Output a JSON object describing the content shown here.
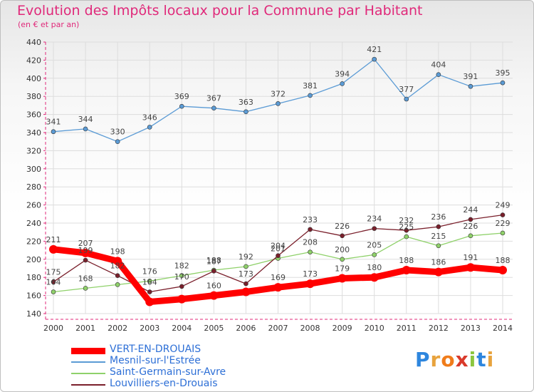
{
  "chart_data": {
    "type": "line",
    "title": "Evolution des Impôts locaux pour la Commune par Habitant",
    "subtitle": "(en € et par an)",
    "x": [
      "2000",
      "2001",
      "2002",
      "2003",
      "2004",
      "2005",
      "2006",
      "2007",
      "2008",
      "2009",
      "2010",
      "2011",
      "2012",
      "2013",
      "2014"
    ],
    "ylim": [
      140,
      440
    ],
    "yticks": [
      140,
      160,
      180,
      200,
      220,
      240,
      260,
      280,
      300,
      320,
      340,
      360,
      380,
      400,
      420,
      440
    ],
    "grid": true,
    "legend_position": "bottom-left",
    "series": [
      {
        "name": "VERT-EN-DROUAIS",
        "color": "#ff0000",
        "emphasis": true,
        "values": [
          211,
          207,
          198,
          153,
          156,
          160,
          164,
          169,
          173,
          179,
          180,
          188,
          186,
          191,
          188
        ],
        "labels": [
          "211",
          "207",
          "198",
          "",
          "",
          "160",
          "",
          "169",
          "173",
          "179",
          "180",
          "188",
          "186",
          "191",
          "188"
        ]
      },
      {
        "name": "Mesnil-sur-l'Estrée",
        "color": "#5b9bd5",
        "values": [
          341,
          344,
          330,
          346,
          369,
          367,
          363,
          372,
          381,
          394,
          421,
          377,
          404,
          391,
          395
        ],
        "labels": [
          "341",
          "344",
          "330",
          "346",
          "369",
          "367",
          "363",
          "372",
          "381",
          "394",
          "421",
          "377",
          "404",
          "391",
          "395"
        ]
      },
      {
        "name": "Saint-Germain-sur-Avre",
        "color": "#8fd16a",
        "values": [
          164,
          168,
          172,
          176,
          182,
          188,
          192,
          201,
          208,
          200,
          205,
          225,
          215,
          226,
          229
        ],
        "labels": [
          "164",
          "168",
          "",
          "176",
          "182",
          "188",
          "192",
          "201",
          "208",
          "200",
          "205",
          "225",
          "215",
          "226",
          "229"
        ]
      },
      {
        "name": "Louvilliers-en-Drouais",
        "color": "#7a1f2b",
        "values": [
          175,
          199,
          182,
          164,
          170,
          187,
          173,
          204,
          233,
          226,
          234,
          232,
          236,
          244,
          249
        ],
        "labels": [
          "175",
          "199",
          "182",
          "164",
          "170",
          "187",
          "173",
          "204",
          "233",
          "226",
          "234",
          "232",
          "236",
          "244",
          "249"
        ]
      }
    ]
  },
  "logo": {
    "letters": [
      "P",
      "r",
      "o",
      "x",
      "i",
      "t",
      "i"
    ],
    "colors": [
      "#2e86de",
      "#e8a33d",
      "#f07c1a",
      "#d93a2b",
      "#8cc63f",
      "#2e86de",
      "#e8a33d"
    ]
  }
}
